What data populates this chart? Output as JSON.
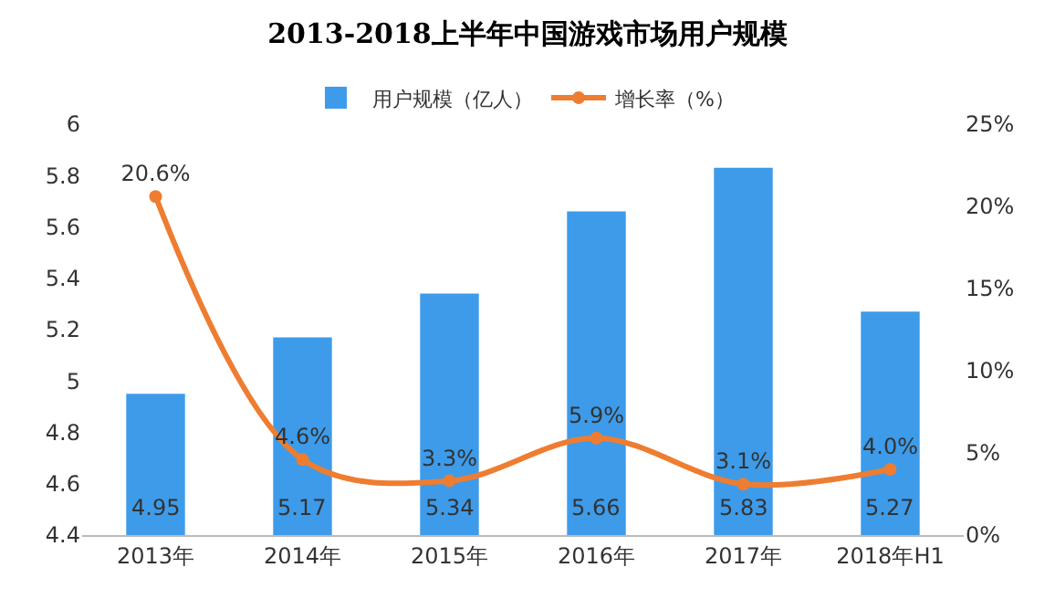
{
  "chart_data": {
    "type": "bar",
    "title": "2013-2018上半年中国游戏市场用户规模",
    "categories": [
      "2013年",
      "2014年",
      "2015年",
      "2016年",
      "2017年",
      "2018年H1"
    ],
    "series": [
      {
        "name": "用户规模（亿人）",
        "color": "#3d9bea",
        "values": [
          4.95,
          5.17,
          5.34,
          5.66,
          5.83,
          5.27
        ]
      },
      {
        "name": "增长率（%）",
        "type": "line",
        "axis": "y2",
        "color": "#ee7d31",
        "marker": "circle",
        "values": [
          20.6,
          4.6,
          3.3,
          5.9,
          3.1,
          4.0
        ],
        "value_labels": [
          "20.6%",
          "4.6%",
          "3.3%",
          "5.9%",
          "3.1%",
          "4.0%"
        ]
      }
    ],
    "ylim": [
      4.4,
      6
    ],
    "yticks": [
      4.4,
      4.6,
      4.8,
      5,
      5.2,
      5.4,
      5.6,
      5.8,
      6
    ],
    "y2lim": [
      0,
      25
    ],
    "y2ticks": [
      {
        "value": 0,
        "label": "0%"
      },
      {
        "value": 5,
        "label": "5%"
      },
      {
        "value": 10,
        "label": "10%"
      },
      {
        "value": 15,
        "label": "15%"
      },
      {
        "value": 20,
        "label": "20%"
      },
      {
        "value": 25,
        "label": "25%"
      }
    ],
    "data_labels": true,
    "grid": false,
    "legend": "top"
  }
}
